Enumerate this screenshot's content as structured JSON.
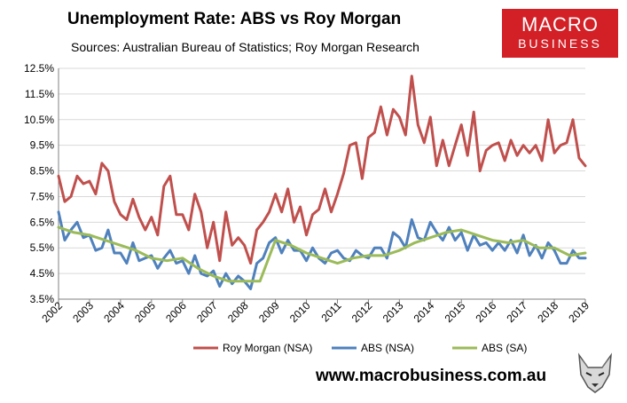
{
  "header": {
    "title": "Unemployment Rate: ABS vs Roy Morgan",
    "subtitle": "Sources: Australian Bureau of Statistics; Roy Morgan Research"
  },
  "logo": {
    "line1": "MACRO",
    "line2": "BUSINESS"
  },
  "footer": {
    "website": "www.macrobusiness.com.au"
  },
  "colors": {
    "roy_morgan": "#c0504d",
    "abs_nsa": "#4f81bd",
    "abs_sa": "#9bbb59"
  },
  "chart_data": {
    "type": "line",
    "title": "Unemployment Rate: ABS vs Roy Morgan",
    "xlabel": "",
    "ylabel": "",
    "xlim": [
      2002,
      2019
    ],
    "ylim": [
      3.5,
      12.5
    ],
    "yticks": [
      "3.5%",
      "4.5%",
      "5.5%",
      "6.5%",
      "7.5%",
      "8.5%",
      "9.5%",
      "10.5%",
      "11.5%",
      "12.5%"
    ],
    "xticks": [
      "2002",
      "2003",
      "2004",
      "2005",
      "2006",
      "2007",
      "2008",
      "2009",
      "2010",
      "2011",
      "2012",
      "2013",
      "2014",
      "2015",
      "2016",
      "2017",
      "2018",
      "2019"
    ],
    "legend_position": "bottom",
    "series": [
      {
        "name": "Roy Morgan (NSA)",
        "color": "#c0504d",
        "x": [
          2002.0,
          2002.2,
          2002.4,
          2002.6,
          2002.8,
          2003.0,
          2003.2,
          2003.4,
          2003.6,
          2003.8,
          2004.0,
          2004.2,
          2004.4,
          2004.6,
          2004.8,
          2005.0,
          2005.2,
          2005.4,
          2005.6,
          2005.8,
          2006.0,
          2006.2,
          2006.4,
          2006.6,
          2006.8,
          2007.0,
          2007.2,
          2007.4,
          2007.6,
          2007.8,
          2008.0,
          2008.2,
          2008.4,
          2008.6,
          2008.8,
          2009.0,
          2009.2,
          2009.4,
          2009.6,
          2009.8,
          2010.0,
          2010.2,
          2010.4,
          2010.6,
          2010.8,
          2011.0,
          2011.2,
          2011.4,
          2011.6,
          2011.8,
          2012.0,
          2012.2,
          2012.4,
          2012.6,
          2012.8,
          2013.0,
          2013.2,
          2013.4,
          2013.6,
          2013.8,
          2014.0,
          2014.2,
          2014.4,
          2014.6,
          2014.8,
          2015.0,
          2015.2,
          2015.4,
          2015.6,
          2015.8,
          2016.0,
          2016.2,
          2016.4,
          2016.6,
          2016.8,
          2017.0,
          2017.2,
          2017.4,
          2017.6,
          2017.8,
          2018.0,
          2018.2,
          2018.4,
          2018.6,
          2018.8,
          2019.0
        ],
        "values": [
          8.3,
          7.3,
          7.5,
          8.3,
          8.0,
          8.1,
          7.6,
          8.8,
          8.5,
          7.3,
          6.8,
          6.6,
          7.4,
          6.7,
          6.2,
          6.7,
          6.0,
          7.9,
          8.3,
          6.8,
          6.8,
          6.2,
          7.6,
          6.9,
          5.5,
          6.5,
          5.0,
          6.9,
          5.6,
          5.9,
          5.6,
          4.9,
          6.2,
          6.5,
          6.9,
          7.6,
          6.9,
          7.8,
          6.5,
          7.1,
          6.0,
          6.8,
          7.0,
          7.8,
          6.9,
          7.6,
          8.4,
          9.5,
          9.6,
          8.2,
          9.8,
          10.0,
          11.0,
          9.9,
          10.9,
          10.6,
          9.9,
          12.2,
          10.3,
          9.6,
          10.6,
          8.7,
          9.7,
          8.7,
          9.5,
          10.3,
          9.1,
          10.8,
          8.5,
          9.3,
          9.5,
          9.6,
          8.9,
          9.7,
          9.1,
          9.5,
          9.2,
          9.5,
          8.9,
          10.5,
          9.2,
          9.5,
          9.6,
          10.5,
          9.0,
          8.7
        ]
      },
      {
        "name": "ABS (NSA)",
        "color": "#4f81bd",
        "x": [
          2002.0,
          2002.2,
          2002.4,
          2002.6,
          2002.8,
          2003.0,
          2003.2,
          2003.4,
          2003.6,
          2003.8,
          2004.0,
          2004.2,
          2004.4,
          2004.6,
          2004.8,
          2005.0,
          2005.2,
          2005.4,
          2005.6,
          2005.8,
          2006.0,
          2006.2,
          2006.4,
          2006.6,
          2006.8,
          2007.0,
          2007.2,
          2007.4,
          2007.6,
          2007.8,
          2008.0,
          2008.2,
          2008.4,
          2008.6,
          2008.8,
          2009.0,
          2009.2,
          2009.4,
          2009.6,
          2009.8,
          2010.0,
          2010.2,
          2010.4,
          2010.6,
          2010.8,
          2011.0,
          2011.2,
          2011.4,
          2011.6,
          2011.8,
          2012.0,
          2012.2,
          2012.4,
          2012.6,
          2012.8,
          2013.0,
          2013.2,
          2013.4,
          2013.6,
          2013.8,
          2014.0,
          2014.2,
          2014.4,
          2014.6,
          2014.8,
          2015.0,
          2015.2,
          2015.4,
          2015.6,
          2015.8,
          2016.0,
          2016.2,
          2016.4,
          2016.6,
          2016.8,
          2017.0,
          2017.2,
          2017.4,
          2017.6,
          2017.8,
          2018.0,
          2018.2,
          2018.4,
          2018.6,
          2018.8,
          2019.0
        ],
        "values": [
          6.9,
          5.8,
          6.2,
          6.5,
          5.9,
          6.0,
          5.4,
          5.5,
          6.2,
          5.3,
          5.3,
          4.9,
          5.7,
          5.0,
          5.1,
          5.2,
          4.7,
          5.1,
          5.4,
          4.9,
          5.0,
          4.5,
          5.2,
          4.5,
          4.4,
          4.6,
          4.0,
          4.5,
          4.1,
          4.4,
          4.2,
          3.9,
          4.9,
          5.1,
          5.7,
          5.9,
          5.3,
          5.8,
          5.4,
          5.4,
          5.0,
          5.5,
          5.1,
          4.9,
          5.3,
          5.4,
          5.1,
          5.0,
          5.4,
          5.2,
          5.1,
          5.5,
          5.5,
          5.1,
          6.1,
          5.9,
          5.5,
          6.6,
          5.9,
          5.8,
          6.5,
          6.1,
          5.8,
          6.3,
          5.8,
          6.1,
          5.4,
          6.0,
          5.6,
          5.7,
          5.4,
          5.7,
          5.4,
          5.8,
          5.3,
          6.0,
          5.2,
          5.6,
          5.1,
          5.7,
          5.4,
          4.9,
          4.9,
          5.4,
          5.1,
          5.1
        ]
      },
      {
        "name": "ABS (SA)",
        "color": "#9bbb59",
        "x": [
          2002.0,
          2002.5,
          2003.0,
          2003.5,
          2004.0,
          2004.5,
          2005.0,
          2005.5,
          2006.0,
          2006.5,
          2007.0,
          2007.5,
          2008.0,
          2008.5,
          2009.0,
          2009.5,
          2010.0,
          2010.5,
          2011.0,
          2011.5,
          2012.0,
          2012.5,
          2013.0,
          2013.5,
          2014.0,
          2014.5,
          2015.0,
          2015.5,
          2016.0,
          2016.5,
          2017.0,
          2017.5,
          2018.0,
          2018.5,
          2019.0
        ],
        "values": [
          6.3,
          6.1,
          6.0,
          5.8,
          5.6,
          5.4,
          5.1,
          5.0,
          5.1,
          4.7,
          4.4,
          4.2,
          4.2,
          4.2,
          5.8,
          5.6,
          5.3,
          5.1,
          4.9,
          5.1,
          5.2,
          5.2,
          5.4,
          5.7,
          5.9,
          6.1,
          6.2,
          6.0,
          5.8,
          5.7,
          5.8,
          5.5,
          5.5,
          5.2,
          5.3
        ]
      }
    ]
  }
}
